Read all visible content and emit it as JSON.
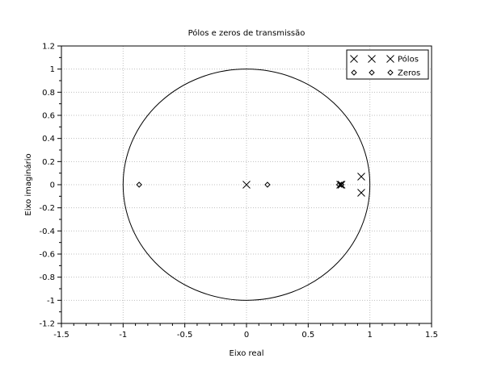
{
  "chart_data": {
    "type": "scatter",
    "title": "Pólos e zeros de transmissão",
    "xlabel": "Eixo real",
    "ylabel": "Eixo imaginário",
    "xlim": [
      -1.5,
      1.5
    ],
    "ylim": [
      -1.2,
      1.2
    ],
    "xticks": [
      -1.5,
      -1,
      -0.5,
      0,
      0.5,
      1,
      1.5
    ],
    "xtick_labels": [
      "-1.5",
      "-1",
      "-0.5",
      "0",
      "0.5",
      "1",
      "1.5"
    ],
    "yticks": [
      -1.2,
      -1,
      -0.8,
      -0.6,
      -0.4,
      -0.2,
      0,
      0.2,
      0.4,
      0.6,
      0.8,
      1,
      1.2
    ],
    "ytick_labels": [
      "-1.2",
      "-1",
      "-0.8",
      "-0.6",
      "-0.4",
      "-0.2",
      "0",
      "0.2",
      "0.4",
      "0.6",
      "0.8",
      "1",
      "1.2"
    ],
    "grid": true,
    "legend_position": "top-right",
    "unit_circle": {
      "center": [
        0,
        0
      ],
      "radius": 1
    },
    "series": [
      {
        "name": "Pólos",
        "marker": "x",
        "points": [
          {
            "x": 0,
            "y": 0
          },
          {
            "x": 0.76,
            "y": 0
          },
          {
            "x": 0.77,
            "y": 0
          },
          {
            "x": 0.93,
            "y": 0.07
          },
          {
            "x": 0.93,
            "y": -0.07
          }
        ]
      },
      {
        "name": "Zeros",
        "marker": "diamond",
        "points": [
          {
            "x": -0.87,
            "y": 0
          },
          {
            "x": 0.17,
            "y": 0
          },
          {
            "x": 0.75,
            "y": 0
          },
          {
            "x": 0.77,
            "y": 0
          }
        ]
      }
    ],
    "colors": {
      "axes": "#000000",
      "grid": "#bfbfbf",
      "markers": "#000000"
    }
  }
}
